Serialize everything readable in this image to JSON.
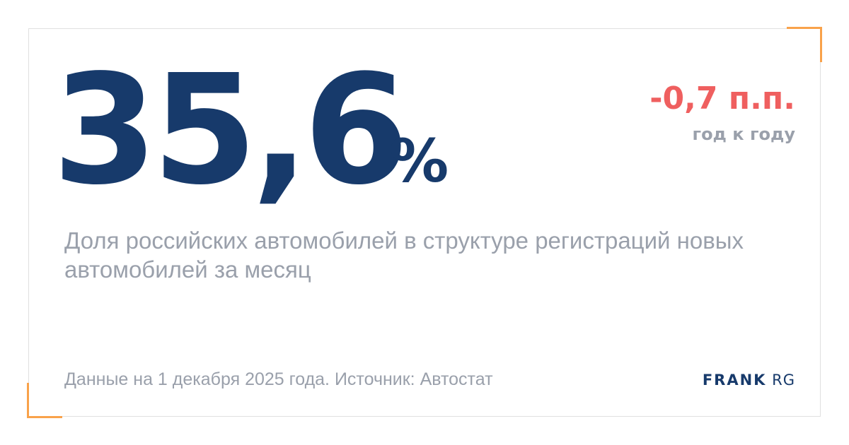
{
  "value": "35,6",
  "unit": "%",
  "change": "-0,7 п.п.",
  "change_label": "год к году",
  "description": "Доля российских автомобилей в структуре регистраций новых автомобилей за месяц",
  "footer": "Данные на 1 декабря 2025 года. Источник: Автостат",
  "logo": {
    "bold": "FRANK",
    "light": "RG"
  },
  "colors": {
    "value": "#173a6b",
    "change": "#ef5f5f",
    "muted": "#9aa0ab",
    "accent": "#f9a24a"
  }
}
